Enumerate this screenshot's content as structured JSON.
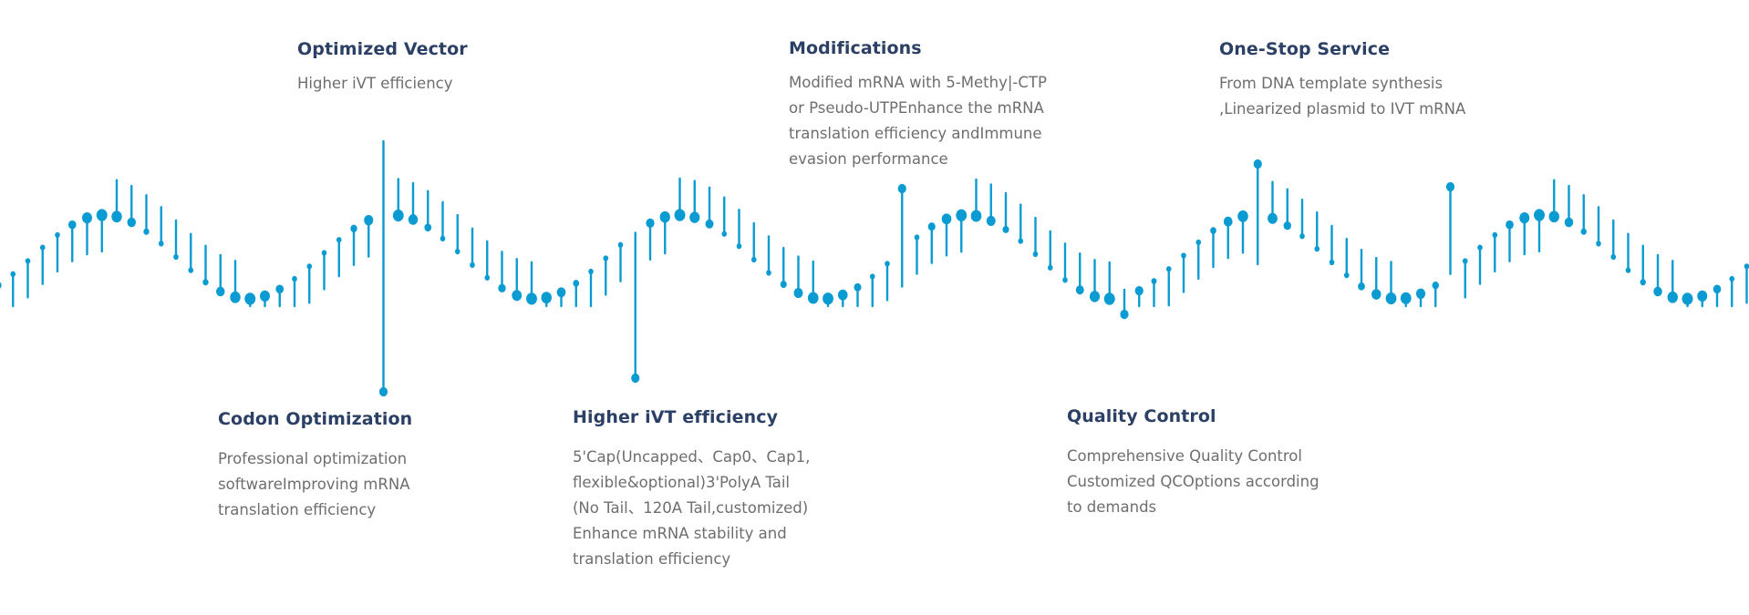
{
  "colors": {
    "wave": "#0a9bd2",
    "heading": "#2b4064",
    "text": "#6e6e6e"
  },
  "features": {
    "optimized_vector": {
      "title": "Optimized Vector",
      "lines": [
        "Higher iVT efficiency"
      ]
    },
    "modifications": {
      "title": "Modifications",
      "lines": [
        "Modified mRNA with 5-Methy|-CTP",
        "or Pseudo-UTPEnhance the mRNA",
        "translation efficiency andImmune",
        "evasion performance"
      ]
    },
    "one_stop": {
      "title": "One-Stop Service",
      "lines": [
        "From DNA template synthesis",
        ",Linearized plasmid to IVT mRNA"
      ]
    },
    "codon": {
      "title": "Codon Optimization",
      "lines": [
        "Professional optimization",
        "softwareImproving mRNA",
        "translation efficiency"
      ]
    },
    "higher_ivt": {
      "title": "Higher iVT efficiency",
      "lines": [
        "5'Cap(Uncapped、Cap0、Cap1,",
        "flexible&optional)3'PolyA Tail",
        "(No Tail、120A Tail,customized)",
        "Enhance mRNA stability and",
        "translation efficiency"
      ]
    },
    "quality": {
      "title": "Quality Control",
      "lines": [
        "Comprehensive Quality Control",
        "Customized QCOptions according",
        "to demands"
      ]
    }
  }
}
